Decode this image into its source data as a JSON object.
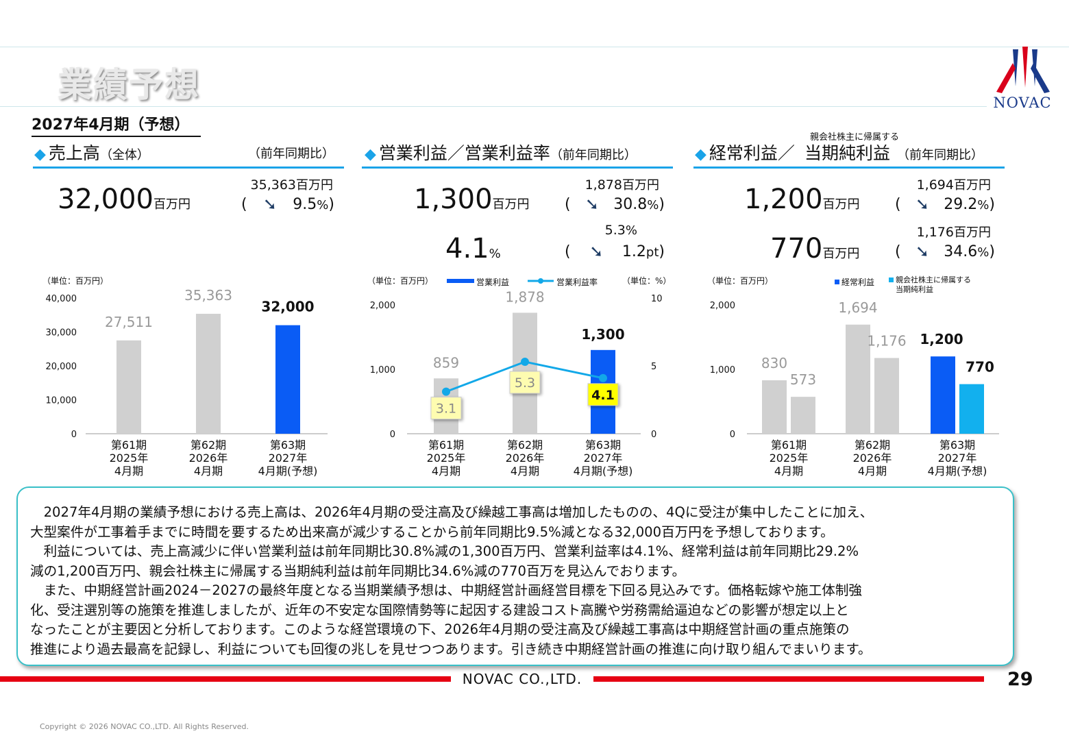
{
  "page": {
    "title": "業績予想",
    "period": "2027年4月期（予想）",
    "company_logo": "NOVAC",
    "footer_company": "NOVAC CO.,LTD.",
    "page_number": "29",
    "copyright": "Copyright © 2026 NOVAC CO.,LTD. All Rights Reserved."
  },
  "sections": {
    "sales": {
      "title": "売上高",
      "title_suffix": "（全体）",
      "yoy_label": "（前年同期比）",
      "value": "32,000",
      "unit": "百万円",
      "prev": "35,363",
      "prev_unit": "百万円",
      "change": "9.5",
      "change_unit": "%"
    },
    "operating": {
      "title": "営業利益／営業利益率",
      "yoy_label": "（前年同期比）",
      "value": "1,300",
      "unit": "百万円",
      "prev": "1,878",
      "prev_unit": "百万円",
      "change": "30.8",
      "change_unit": "%",
      "rate_value": "4.1",
      "rate_unit": "%",
      "rate_prev": "5.3",
      "rate_prev_unit": "%",
      "rate_change": "1.2",
      "rate_change_unit": "pt"
    },
    "ordinary": {
      "title": "経常利益／",
      "title_note": "親会社株主に帰属する",
      "title2": "当期純利益",
      "yoy_label": "（前年同期比）",
      "value": "1,200",
      "unit": "百万円",
      "prev": "1,694",
      "prev_unit": "百万円",
      "change": "29.2",
      "change_unit": "%",
      "net_value": "770",
      "net_unit": "百万円",
      "net_prev": "1,176",
      "net_prev_unit": "百万円",
      "net_change": "34.6",
      "net_change_unit": "%"
    }
  },
  "chart_data": [
    {
      "type": "bar",
      "unit_label": "（単位：百万円）",
      "categories": [
        [
          "第61期",
          "2025年",
          "4月期"
        ],
        [
          "第62期",
          "2026年",
          "4月期"
        ],
        [
          "第63期",
          "2027年",
          "4月期(予想)"
        ]
      ],
      "series": [
        {
          "values": [
            27511,
            35363,
            32000
          ]
        }
      ],
      "value_labels": [
        "27,511",
        "35,363",
        "32,000"
      ],
      "yticks": [
        "0",
        "10,000",
        "20,000",
        "30,000",
        "40,000"
      ],
      "ylim": [
        0,
        40000
      ],
      "colors": [
        "#d0d0d0",
        "#d0d0d0",
        "#0a5cf5"
      ]
    },
    {
      "type": "bar+line",
      "unit_label": "（単位：百万円）",
      "unit_label_right": "（単位：%）",
      "categories": [
        [
          "第61期",
          "2025年",
          "4月期"
        ],
        [
          "第62期",
          "2026年",
          "4月期"
        ],
        [
          "第63期",
          "2027年",
          "4月期(予想)"
        ]
      ],
      "series": [
        {
          "name": "営業利益",
          "values": [
            859,
            1878,
            1300
          ],
          "labels": [
            "859",
            "1,878",
            "1,300"
          ]
        },
        {
          "name": "営業利益率",
          "values": [
            3.1,
            5.3,
            4.1
          ],
          "labels": [
            "3.1",
            "5.3",
            "4.1"
          ]
        }
      ],
      "yticks": [
        "0",
        "1,000",
        "2,000"
      ],
      "ylim": [
        0,
        2000
      ],
      "yticks_right": [
        "0",
        "5",
        "10"
      ],
      "ylim_right": [
        0,
        10
      ],
      "colors": {
        "prior": "#d0d0d0",
        "forecast": "#0a5cf5",
        "line": "#12a8e8"
      }
    },
    {
      "type": "bar",
      "unit_label": "（単位：百万円）",
      "categories": [
        [
          "第61期",
          "2025年",
          "4月期"
        ],
        [
          "第62期",
          "2026年",
          "4月期"
        ],
        [
          "第63期",
          "2027年",
          "4月期(予想)"
        ]
      ],
      "series": [
        {
          "name": "経常利益",
          "values": [
            830,
            1694,
            1200
          ],
          "labels": [
            "830",
            "1,694",
            "1,200"
          ]
        },
        {
          "name": "親会社株主に帰属する当期純利益",
          "legend_lines": [
            "親会社株主に帰属する",
            "当期純利益"
          ],
          "values": [
            573,
            1176,
            770
          ],
          "labels": [
            "573",
            "1,176",
            "770"
          ]
        }
      ],
      "yticks": [
        "0",
        "1,000",
        "2,000"
      ],
      "ylim": [
        0,
        2000
      ],
      "colors": {
        "prior": "#d0d0d0",
        "forecast1": "#0a5cf5",
        "forecast2": "#12b0ee"
      }
    }
  ],
  "commentary": [
    "2027年4月期の業績予想における売上高は、2026年4月期の受注高及び繰越工事高は増加したものの、4Qに受注が集中したことに加え、",
    "大型案件が工事着手までに時間を要するため出来高が減少することから前年同期比9.5%減となる32,000百万円を予想しております。",
    "利益については、売上高減少に伴い営業利益は前年同期比30.8%減の1,300百万円、営業利益率は4.1%、経常利益は前年同期比29.2%",
    "減の1,200百万円、親会社株主に帰属する当期純利益は前年同期比34.6%減の770百万を見込んでおります。",
    "また、中期経営計画2024－2027の最終年度となる当期業績予想は、中期経営計画経営目標を下回る見込みです。価格転嫁や施工体制強",
    "化、受注選別等の施策を推進しましたが、近年の不安定な国際情勢等に起因する建設コスト高騰や労務需給逼迫などの影響が想定以上と",
    "なったことが主要因と分析しております。このような経営環境の下、2026年4月期の受注高及び繰越工事高は中期経営計画の重点施策の",
    "推進により過去最高を記録し、利益についても回復の兆しを見せつつあります。引き続き中期経営計画の推進に向け取り組んでまいります。"
  ]
}
